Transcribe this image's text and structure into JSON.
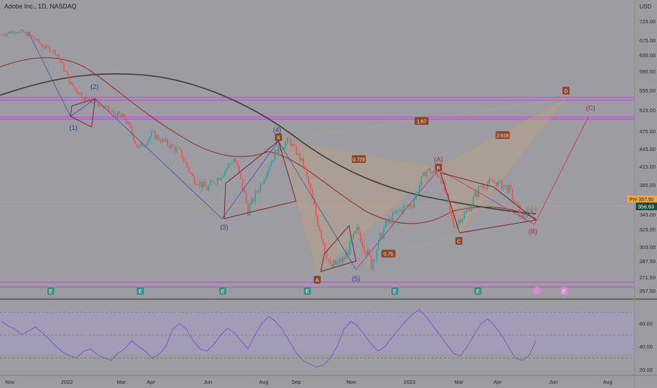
{
  "header": {
    "symbol_title": "Adobe Inc., 1D, NASDAQ",
    "currency": "USD"
  },
  "chart_data": [
    {
      "type": "line",
      "title": "",
      "y_ticks": [
        725.0,
        675.0,
        635.0,
        595.0,
        555.0,
        515.0,
        475.0,
        445.0,
        415.0,
        385.0,
        345.0,
        325.0,
        305.0,
        287.5,
        271.5,
        257.5
      ],
      "x_ticks": [
        "Nov",
        "2022",
        "Mar",
        "Apr",
        "Jun",
        "Aug",
        "Sep",
        "Nov",
        "2023",
        "Mar",
        "Apr",
        "Jun",
        "Aug"
      ],
      "price_labels": {
        "pre_tag": "Pre",
        "pre_value": "357.50",
        "last_value": "356.63"
      },
      "price_path": [
        [
          "Nov",
          690
        ],
        [
          "Nov",
          700
        ],
        [
          "Nov",
          690
        ],
        [
          "Nov",
          660
        ],
        [
          "Nov",
          640
        ],
        [
          "2022",
          570
        ],
        [
          "2022",
          540
        ],
        [
          "2022",
          530
        ],
        [
          "2022",
          510
        ],
        [
          "Mar",
          500
        ],
        [
          "Mar",
          445
        ],
        [
          "Mar",
          470
        ],
        [
          "Apr",
          455
        ],
        [
          "Apr",
          440
        ],
        [
          "Apr",
          395
        ],
        [
          "Jun",
          380
        ],
        [
          "Jun",
          400
        ],
        [
          "Jun",
          430
        ],
        [
          "Jun",
          350
        ],
        [
          "Aug",
          390
        ],
        [
          "Aug",
          440
        ],
        [
          "Aug",
          460
        ],
        [
          "Sep",
          420
        ],
        [
          "Sep",
          340
        ],
        [
          "Sep",
          280
        ],
        [
          "Nov",
          290
        ],
        [
          "Nov",
          325
        ],
        [
          "Nov",
          285
        ],
        [
          "2023",
          330
        ],
        [
          "2023",
          350
        ],
        [
          "2023",
          360
        ],
        [
          "2023",
          410
        ],
        [
          "Mar",
          400
        ],
        [
          "Mar",
          330
        ],
        [
          "Mar",
          350
        ],
        [
          "Apr",
          385
        ],
        [
          "Apr",
          390
        ],
        [
          "Apr",
          380
        ],
        [
          "Apr",
          340
        ],
        [
          "Jun",
          357
        ]
      ],
      "wave_labels": [
        "(1)",
        "(2)",
        "(3)",
        "(4)",
        "(5)",
        "(A)",
        "(B)",
        "(C)"
      ],
      "harmonic_points": [
        "X",
        "A",
        "B",
        "C",
        "D"
      ],
      "harmonic_ratios": [
        "0.729",
        "0.75",
        "2.618",
        "1.67"
      ],
      "earnings_markers": [
        "E",
        "E",
        "E",
        "E",
        "E",
        "E",
        "E"
      ]
    },
    {
      "type": "line",
      "title": "",
      "y_ticks": [
        60.0,
        40.0,
        20.0
      ],
      "ylim": [
        15,
        80
      ],
      "levels": [
        70,
        50,
        30
      ],
      "values": [
        62,
        58,
        55,
        50,
        54,
        57,
        52,
        46,
        40,
        35,
        32,
        30,
        36,
        38,
        33,
        30,
        28,
        34,
        38,
        45,
        40,
        36,
        30,
        33,
        40,
        55,
        60,
        55,
        45,
        38,
        36,
        42,
        50,
        56,
        52,
        45,
        38,
        50,
        60,
        66,
        62,
        55,
        45,
        35,
        28,
        25,
        22,
        24,
        30,
        40,
        55,
        62,
        58,
        50,
        42,
        36,
        40,
        48,
        55,
        62,
        68,
        72,
        66,
        58,
        50,
        42,
        34,
        32,
        40,
        50,
        60,
        64,
        58,
        50,
        40,
        30,
        28,
        32,
        45
      ]
    }
  ]
}
